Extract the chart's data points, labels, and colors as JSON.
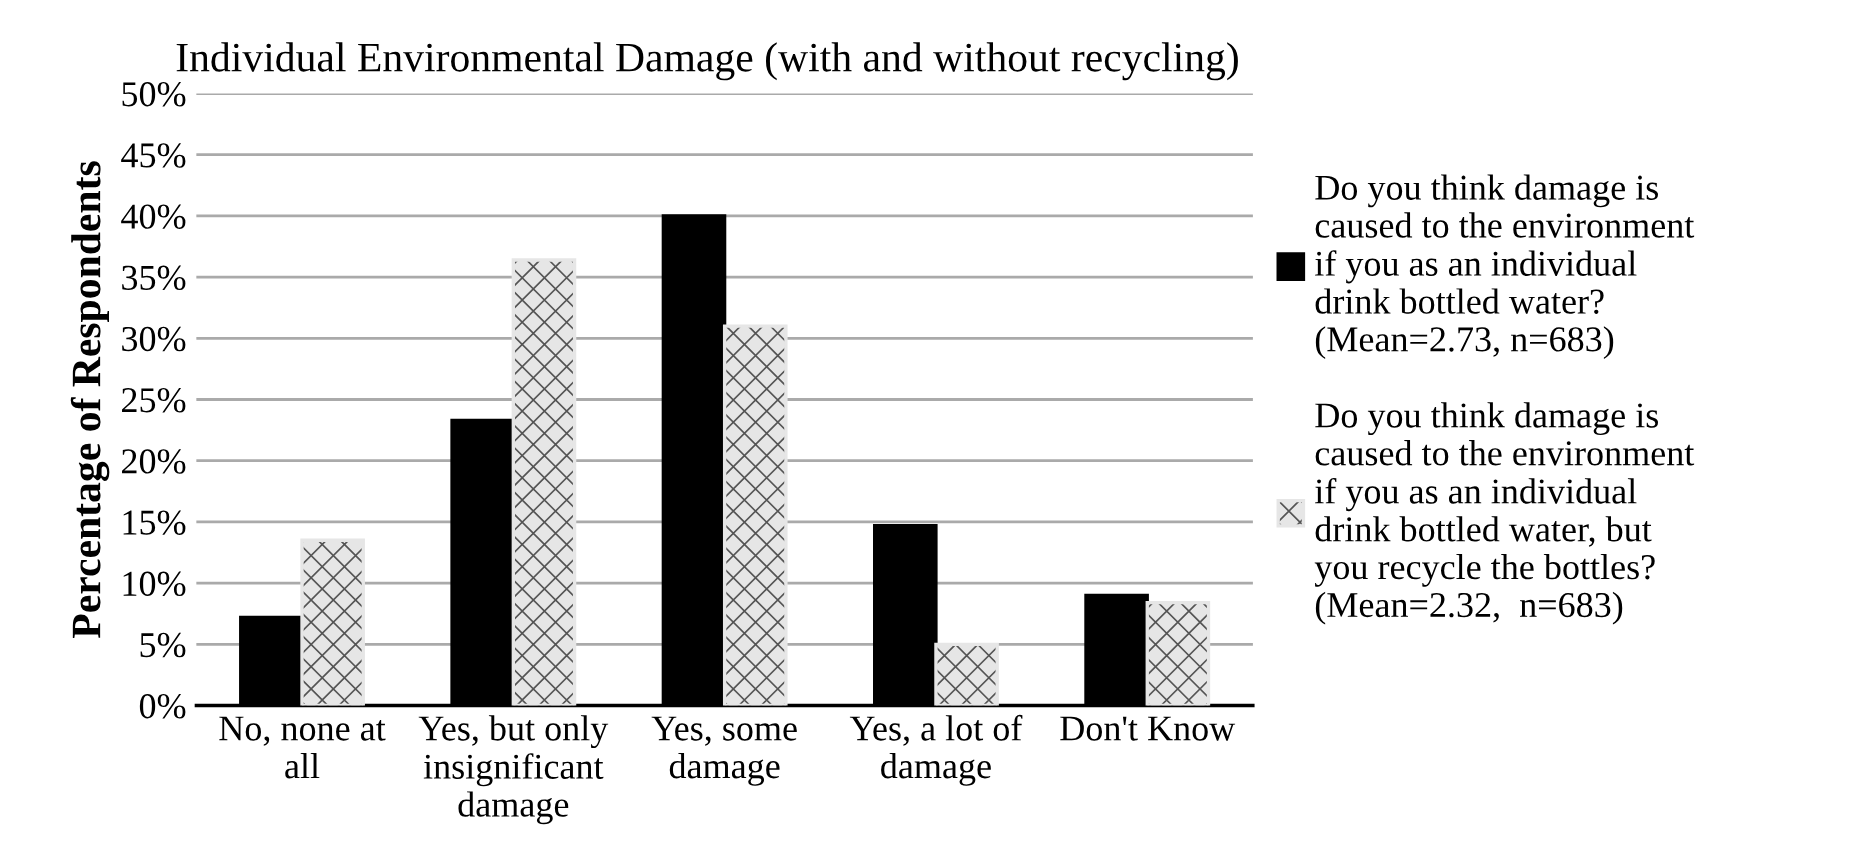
{
  "chart_data": {
    "type": "bar",
    "title": "Individual Environmental Damage (with and without recycling)",
    "ylabel": "Percentage of Respondents",
    "categories": [
      "No, none at\nall",
      "Yes, but only\ninsignificant\ndamage",
      "Yes, some\ndamage",
      "Yes, a lot of\ndamage",
      "Don't Know"
    ],
    "series": [
      {
        "name": "Do you think damage is\ncaused to the environment\nif you as an individual\ndrink bottled water?\n(Mean=2.73, n=683)",
        "color": "#000000",
        "values": [
          7.2,
          23.3,
          40.0,
          14.7,
          9.0
        ]
      },
      {
        "name": "Do you think damage is\ncaused to the environment\nif you as an individual\ndrink bottled water, but\nyou recycle the bottles?\n(Mean=2.32,  n=683)",
        "color": "#e6e6e6",
        "values": [
          13.5,
          36.4,
          31.0,
          5.0,
          8.4
        ]
      }
    ],
    "ylim": [
      0,
      50
    ],
    "yticks": [
      {
        "value": 0,
        "label": "0%"
      },
      {
        "value": 5,
        "label": "5%"
      },
      {
        "value": 10,
        "label": "10%"
      },
      {
        "value": 15,
        "label": "15%"
      },
      {
        "value": 20,
        "label": "20%"
      },
      {
        "value": 25,
        "label": "25%"
      },
      {
        "value": 30,
        "label": "30%"
      },
      {
        "value": 35,
        "label": "35%"
      },
      {
        "value": 40,
        "label": "40%"
      },
      {
        "value": 45,
        "label": "45%"
      },
      {
        "value": 50,
        "label": "50%"
      }
    ],
    "grid": "y",
    "legend": "right"
  }
}
